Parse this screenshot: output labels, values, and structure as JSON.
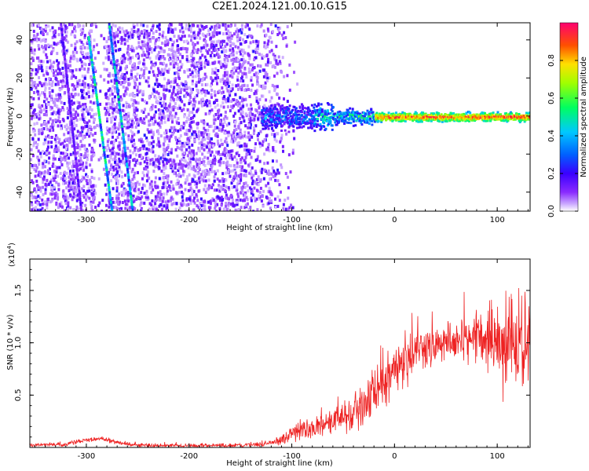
{
  "title": "C2E1.2024.121.00.10.G15",
  "colors": {
    "snr_line": "#ee2222",
    "scatter_background": "#7a22ee",
    "colorbar": [
      "#ffffff",
      "#9a33ff",
      "#6a00ff",
      "#0000ff",
      "#00bfff",
      "#00ff80",
      "#80ff00",
      "#ffff00",
      "#ff8000",
      "#ff0000",
      "#ff0080"
    ]
  },
  "chart_data": [
    {
      "type": "heatmap",
      "xlabel": "Height of straight line (km)",
      "ylabel": "Frequency (Hz)",
      "xlim": [
        -355,
        132
      ],
      "ylim": [
        -50,
        49
      ],
      "xticks": [
        "-300",
        "-200",
        "-100",
        "0",
        "100"
      ],
      "xtick_values": [
        -300,
        -200,
        -100,
        0,
        100
      ],
      "yticks": [
        "40",
        "20",
        "0",
        "-20",
        "-40"
      ],
      "ytick_values": [
        40,
        20,
        0,
        -20,
        -40
      ],
      "colorbar": {
        "label": "Normalized spectral amplitude",
        "range": [
          0,
          1
        ],
        "ticks": [
          "0.0",
          "0.2",
          "0.4",
          "0.6",
          "0.8"
        ],
        "tick_values": [
          0.0,
          0.2,
          0.4,
          0.6,
          0.8
        ]
      },
      "features": {
        "noise_region_x": [
          -355,
          -100
        ],
        "signal_band_center_hz": 0,
        "signal_band_x": [
          -130,
          132
        ],
        "diagonal_streaks": [
          {
            "x": [
              -325,
              -305
            ],
            "y": [
              49,
              -50
            ],
            "amplitude": 0.15
          },
          {
            "x": [
              -298,
              -275
            ],
            "y": [
              42,
              -50
            ],
            "amplitude": 0.45
          },
          {
            "x": [
              -278,
              -255
            ],
            "y": [
              49,
              -50
            ],
            "amplitude": 0.4
          }
        ]
      }
    },
    {
      "type": "line",
      "xlabel": "Height of straight line (km)",
      "ylabel": "SNR (10 * v/v)",
      "multiplier_label": "(x10",
      "multiplier_exp": "4",
      "xlim": [
        -355,
        132
      ],
      "ylim": [
        0,
        1.8
      ],
      "xticks": [
        "-300",
        "-200",
        "-100",
        "0",
        "100"
      ],
      "xtick_values": [
        -300,
        -200,
        -100,
        0,
        100
      ],
      "yticks": [
        "0.5",
        "1.0",
        "1.5"
      ],
      "ytick_values": [
        0.5,
        1.0,
        1.5
      ],
      "envelope": {
        "x": [
          -355,
          -320,
          -300,
          -285,
          -270,
          -250,
          -200,
          -150,
          -120,
          -100,
          -80,
          -60,
          -40,
          -20,
          0,
          20,
          40,
          60,
          80,
          100,
          110,
          120,
          132
        ],
        "y": [
          0.02,
          0.03,
          0.07,
          0.08,
          0.05,
          0.02,
          0.02,
          0.02,
          0.04,
          0.12,
          0.18,
          0.25,
          0.32,
          0.5,
          0.75,
          0.92,
          1.0,
          1.02,
          1.05,
          1.0,
          0.95,
          1.0,
          0.95
        ]
      },
      "spread": {
        "x": [
          -355,
          -300,
          -200,
          -120,
          -100,
          -80,
          -60,
          -40,
          -20,
          0,
          20,
          40,
          60,
          80,
          100,
          110,
          120,
          132
        ],
        "y": [
          0.02,
          0.03,
          0.02,
          0.03,
          0.1,
          0.12,
          0.15,
          0.2,
          0.3,
          0.3,
          0.3,
          0.25,
          0.22,
          0.3,
          0.5,
          0.6,
          0.6,
          0.5
        ]
      }
    }
  ]
}
